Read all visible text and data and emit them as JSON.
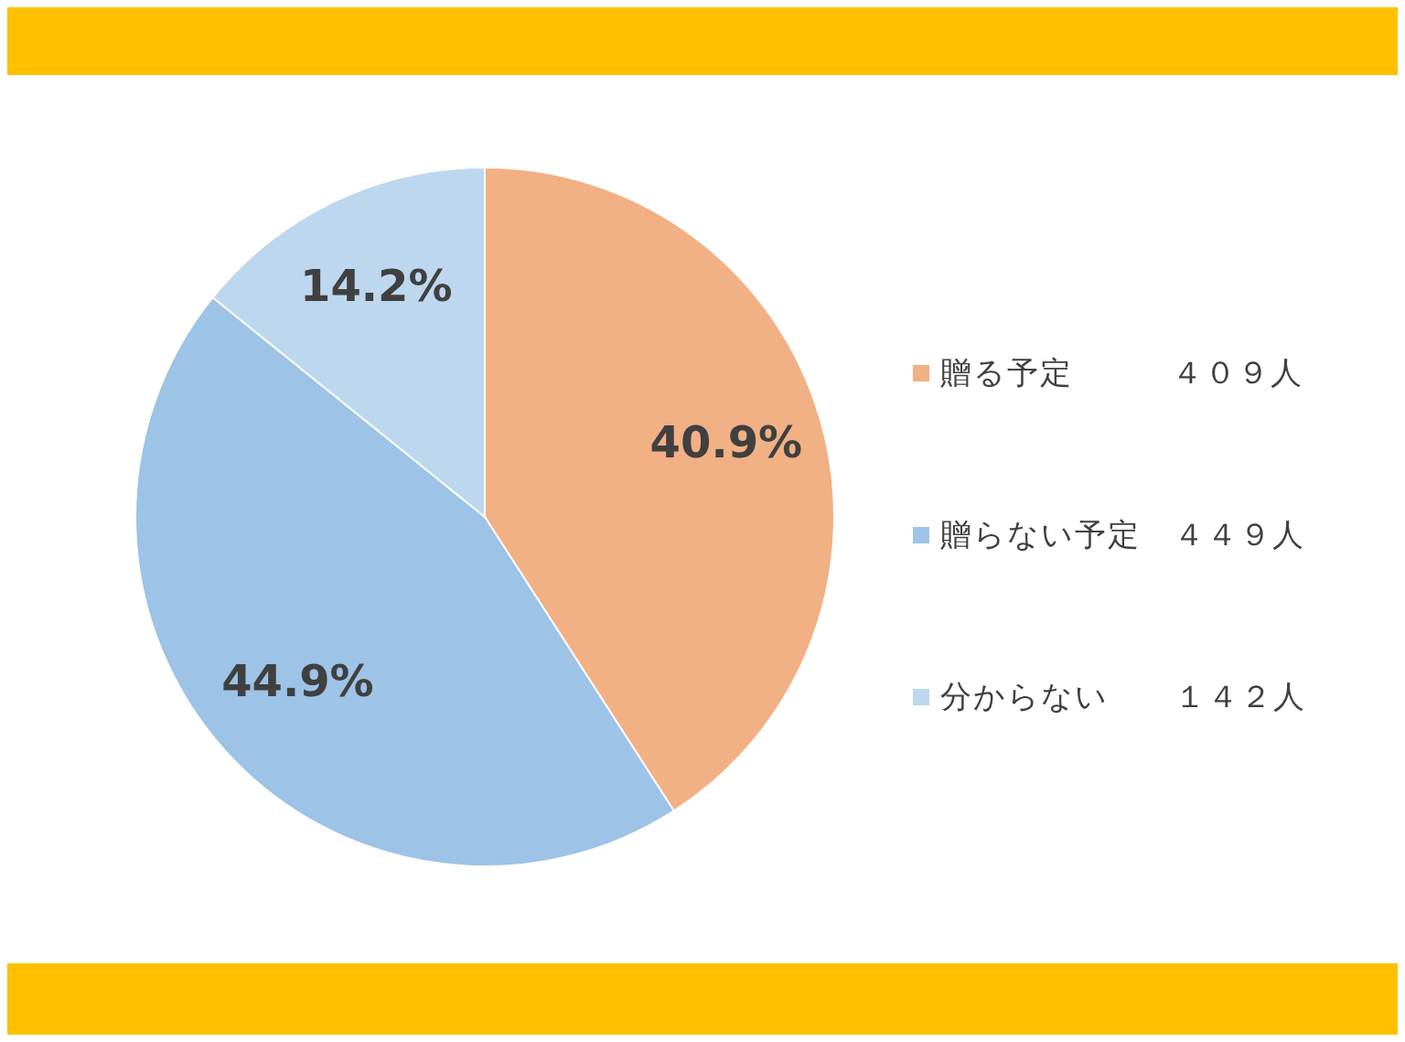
{
  "chart_data": {
    "type": "pie",
    "categories": [
      "贈る予定　　　４０９人",
      "贈らない予定　４４９人",
      "分からない　　１４２人"
    ],
    "values": [
      40.9,
      44.9,
      14.2
    ],
    "value_labels": [
      "40.9%",
      "44.9%",
      "14.2%"
    ],
    "colors": [
      "#f2b085",
      "#9dc3e6",
      "#bdd7ee"
    ],
    "legend": "right"
  }
}
